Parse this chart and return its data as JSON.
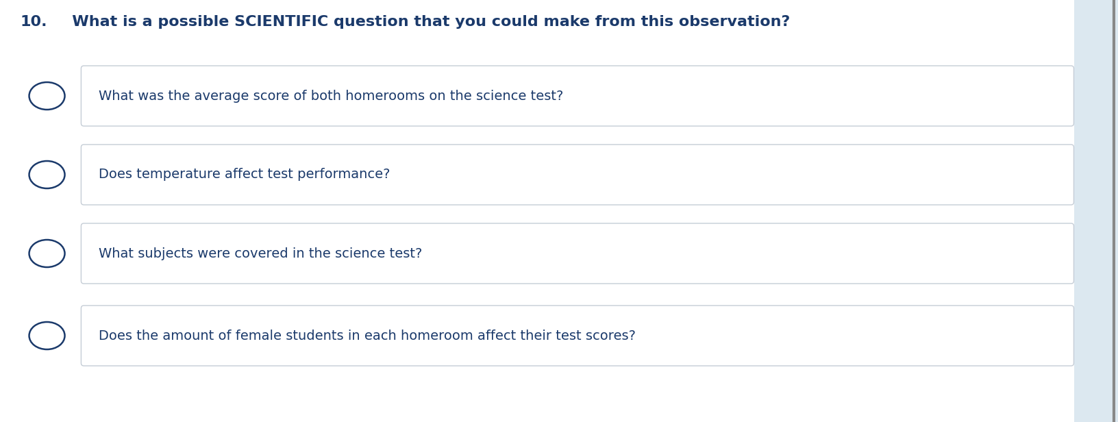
{
  "question_number": "10.",
  "question_prefix": "   What is a possible ",
  "question_bold": "SCIENTIFIC",
  "question_suffix": " question that you could make from this observation?",
  "options": [
    "What was the average score of both homerooms on the science test?",
    "Does temperature affect test performance?",
    "What subjects were covered in the science test?",
    "Does the amount of female students in each homeroom affect their test scores?"
  ],
  "background_color": "#ffffff",
  "text_color": "#1b3a6b",
  "box_border_color": "#c5cdd6",
  "box_fill_color": "#ffffff",
  "ellipse_color": "#1b3a6b",
  "question_fontsize": 16,
  "option_fontsize": 14,
  "right_panel_color": "#dce8f0",
  "right_border_color": "#888888",
  "figwidth": 16.32,
  "figheight": 6.16,
  "dpi": 100
}
